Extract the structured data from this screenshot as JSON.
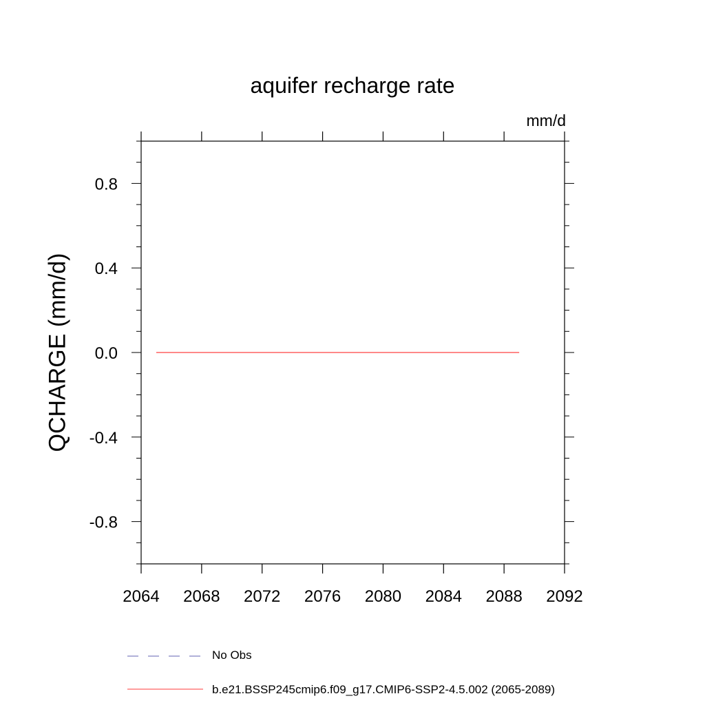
{
  "chart_data": {
    "type": "line",
    "title": "aquifer recharge rate",
    "units_label": "mm/d",
    "ylabel": "QCHARGE  (mm/d)",
    "xlabel": "",
    "xlim": [
      2064,
      2092
    ],
    "ylim": [
      -1.0,
      1.0
    ],
    "x_ticks": [
      2064,
      2068,
      2072,
      2076,
      2080,
      2084,
      2088,
      2092
    ],
    "x_tick_labels": [
      "2064",
      "2068",
      "2072",
      "2076",
      "2080",
      "2084",
      "2088",
      "2092"
    ],
    "y_ticks": [
      0.8,
      0.4,
      0.0,
      -0.4,
      -0.8
    ],
    "y_tick_labels": [
      "0.8",
      "0.4",
      "0.0",
      "-0.4",
      "-0.8"
    ],
    "grid": false,
    "legend_placement": "bottom",
    "series": [
      {
        "name": "No Obs",
        "color": "#8080c0",
        "dash": true,
        "x": [],
        "y": []
      },
      {
        "name": "b.e21.BSSP245cmip6.f09_g17.CMIP6-SSP2-4.5.002 (2065-2089)",
        "color": "#ff6060",
        "dash": false,
        "x": [
          2065,
          2089
        ],
        "y": [
          0.0,
          0.0
        ]
      }
    ]
  }
}
